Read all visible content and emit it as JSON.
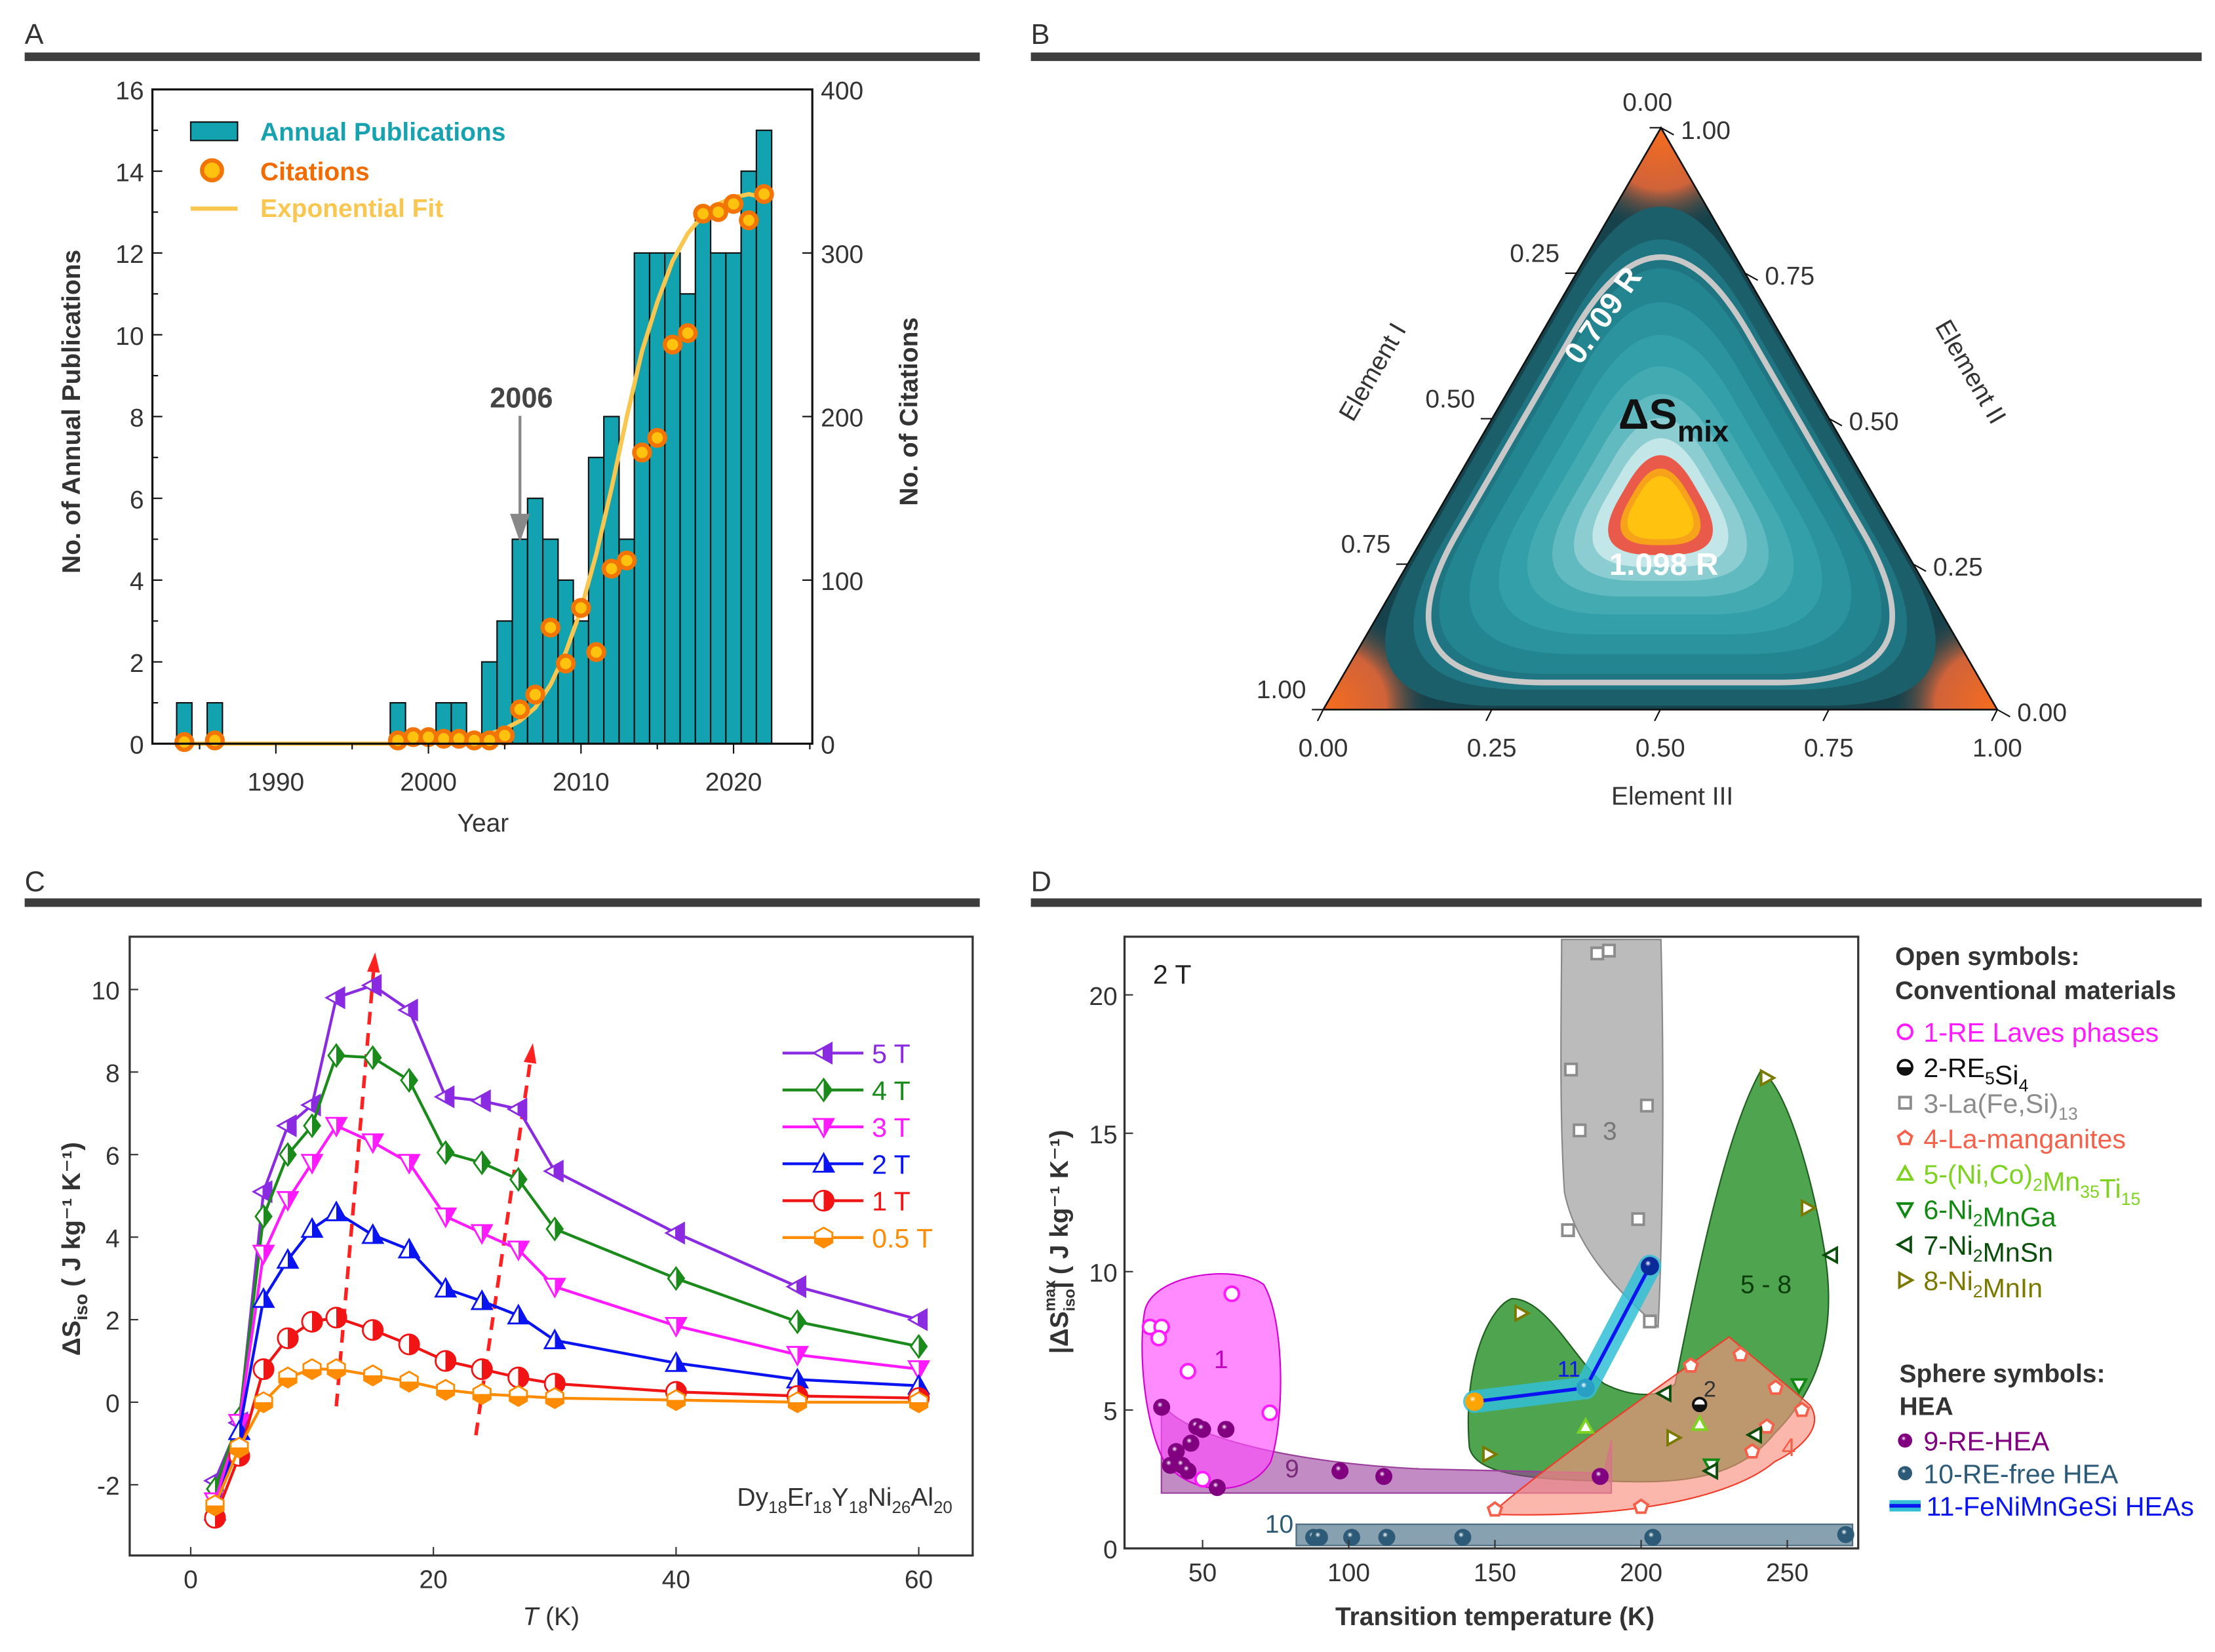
{
  "panels": {
    "a": "A",
    "b": "B",
    "c": "C",
    "d": "D"
  },
  "chart_data": [
    {
      "type": "bar",
      "panel": "A",
      "xlabel": "Year",
      "ylabel": "No. of Annual Publications",
      "y2label": "No. of Citations",
      "ylim": [
        0,
        16
      ],
      "y2lim": [
        0,
        400
      ],
      "yticks": [
        "0",
        "2",
        "4",
        "6",
        "8",
        "10",
        "12",
        "14",
        "16"
      ],
      "y2ticks": [
        "0",
        "100",
        "200",
        "300",
        "400"
      ],
      "xticks": [
        "1990",
        "2000",
        "2010",
        "2020"
      ],
      "annotation": "2006",
      "legend": [
        "Annual Publications",
        "Citations",
        "Exponential Fit"
      ],
      "publications": {
        "years": [
          1984,
          1986,
          1998,
          2001,
          2002,
          2004,
          2005,
          2006,
          2007,
          2008,
          2009,
          2010,
          2011,
          2012,
          2013,
          2014,
          2015,
          2016,
          2017,
          2018,
          2019,
          2020,
          2021,
          2022
        ],
        "values": [
          1,
          1,
          1,
          1,
          1,
          2,
          3,
          5,
          6,
          5,
          4,
          3,
          7,
          8,
          5,
          12,
          12,
          12,
          11,
          13,
          12,
          12,
          14,
          15
        ]
      },
      "citations": {
        "years": [
          1984,
          1986,
          1998,
          1999,
          2000,
          2001,
          2002,
          2003,
          2004,
          2005,
          2006,
          2007,
          2008,
          2009,
          2010,
          2011,
          2012,
          2013,
          2014,
          2015,
          2016,
          2017,
          2018,
          2019,
          2020,
          2021,
          2022
        ],
        "values": [
          1,
          2,
          2,
          4,
          4,
          3,
          3,
          2,
          2,
          5,
          21,
          30,
          71,
          49,
          83,
          56,
          107,
          112,
          178,
          187,
          244,
          251,
          324,
          325,
          330,
          320,
          336
        ]
      },
      "fit": {
        "years": [
          1984,
          1998,
          2000,
          2002,
          2003,
          2004,
          2005,
          2006,
          2007,
          2008,
          2009,
          2010,
          2011,
          2012,
          2013,
          2014,
          2015,
          2016,
          2017,
          2018,
          2019,
          2020,
          2021,
          2022
        ],
        "values": [
          0,
          0,
          1,
          3,
          4,
          6,
          9,
          14,
          22,
          36,
          56,
          82,
          116,
          156,
          200,
          240,
          270,
          295,
          312,
          323,
          330,
          334,
          336,
          334
        ]
      },
      "colors": {
        "bar": "#13a3b0",
        "citation": "#f27405",
        "citation_fill": "#ffc20e",
        "fit": "#f9c74f",
        "arrow": "#888888"
      }
    },
    {
      "type": "ternary",
      "panel": "B",
      "axes": [
        "Element I",
        "Element II",
        "Element III"
      ],
      "left_ticks": [
        "0.00",
        "0.25",
        "0.50",
        "0.75",
        "1.00"
      ],
      "right_ticks": [
        "1.00",
        "0.75",
        "0.50",
        "0.25",
        "0.00"
      ],
      "bottom_ticks": [
        "0.00",
        "0.25",
        "0.50",
        "0.75",
        "1.00"
      ],
      "title": "ΔS",
      "title_sub": "mix",
      "contour_outer": "0.709 R",
      "contour_max": "1.098 R"
    },
    {
      "type": "line",
      "panel": "C",
      "xlabel_italic": "T",
      "xlabel": " (K)",
      "ylabel": "ΔS",
      "ylabel_sub": "iso",
      "ylabel_units": " ( J kg⁻¹ K⁻¹)",
      "xlim": [
        -5,
        64
      ],
      "ylim": [
        -3.4,
        11.2
      ],
      "xticks": [
        0,
        20,
        40,
        60
      ],
      "yticks": [
        -2,
        0,
        2,
        4,
        6,
        8,
        10
      ],
      "formula": [
        [
          "Dy",
          ""
        ],
        [
          "18",
          "sub"
        ],
        [
          "Er",
          ""
        ],
        [
          "18",
          "sub"
        ],
        [
          "Y",
          ""
        ],
        [
          "18",
          "sub"
        ],
        [
          "Ni",
          ""
        ],
        [
          "26",
          "sub"
        ],
        [
          "Al",
          ""
        ],
        [
          "20",
          "sub"
        ]
      ],
      "x": [
        2,
        4,
        6,
        8,
        10,
        12,
        15,
        18,
        21,
        24,
        27,
        30,
        40,
        50,
        60
      ],
      "series": [
        {
          "name": "5 T",
          "color": "#8a2be2",
          "marker": "tri-left",
          "values": [
            -1.9,
            -0.5,
            5.1,
            6.7,
            7.2,
            9.8,
            10.1,
            9.5,
            7.4,
            7.3,
            7.1,
            5.6,
            4.1,
            2.8,
            2.0
          ]
        },
        {
          "name": "4 T",
          "color": "#1a8a1a",
          "marker": "diamond",
          "values": [
            -2.1,
            -0.4,
            4.5,
            6.0,
            6.7,
            8.4,
            8.35,
            7.8,
            6.05,
            5.8,
            5.4,
            4.2,
            3.0,
            1.95,
            1.35
          ]
        },
        {
          "name": "3 T",
          "color": "#ff1aff",
          "marker": "tri-down",
          "values": [
            -2.4,
            -0.5,
            3.6,
            4.9,
            5.8,
            6.7,
            6.3,
            5.8,
            4.5,
            4.1,
            3.7,
            2.8,
            1.85,
            1.15,
            0.8
          ]
        },
        {
          "name": "2 T",
          "color": "#0a14f0",
          "marker": "tri-up",
          "values": [
            -2.65,
            -0.7,
            2.5,
            3.45,
            4.2,
            4.6,
            4.05,
            3.7,
            2.75,
            2.45,
            2.1,
            1.5,
            0.95,
            0.55,
            0.4
          ]
        },
        {
          "name": "1 T",
          "color": "#f01414",
          "marker": "circle",
          "values": [
            -2.8,
            -1.3,
            0.8,
            1.55,
            1.95,
            2.05,
            1.75,
            1.4,
            1.0,
            0.8,
            0.6,
            0.45,
            0.25,
            0.15,
            0.1
          ]
        },
        {
          "name": "0.5 T",
          "color": "#ff8c00",
          "marker": "hexagon",
          "values": [
            -2.5,
            -1.1,
            0.0,
            0.6,
            0.8,
            0.8,
            0.65,
            0.5,
            0.3,
            0.2,
            0.15,
            0.1,
            0.05,
            0.0,
            0.0
          ]
        }
      ],
      "trend_arrows": [
        {
          "from": [
            12,
            -0.1
          ],
          "to": [
            15.2,
            10.9
          ]
        },
        {
          "from": [
            23.5,
            -0.8
          ],
          "to": [
            28.2,
            8.7
          ]
        }
      ],
      "arrow_color": "#ff2020"
    },
    {
      "type": "scatter",
      "panel": "D",
      "xlabel": "Transition temperature (K)",
      "ylabel": "|ΔS",
      "ylabel_sup": "max",
      "ylabel_sub": "iso",
      "ylabel_units": "| ( J kg⁻¹ K⁻¹)",
      "xlim": [
        23,
        274
      ],
      "ylim": [
        0,
        22
      ],
      "xticks": [
        50,
        100,
        150,
        200,
        250
      ],
      "yticks": [
        0,
        5,
        10,
        15,
        20
      ],
      "field_label": "2 T",
      "region_labels": {
        "r1": "1",
        "r2": "2",
        "r3": "3",
        "r4": "4",
        "r58": "5 - 8",
        "r9": "9",
        "r10": "10",
        "r11": "11"
      },
      "legend_heading_open": [
        "Open symbols:",
        "Conventional materials"
      ],
      "legend_heading_sphere": [
        "Sphere symbols:",
        "HEA"
      ],
      "series": [
        {
          "id": "1",
          "color": "#ff1aff",
          "marker": "circle",
          "label": [
            [
              "1-RE Laves phases",
              ""
            ]
          ],
          "points": [
            [
              32,
              8.0
            ],
            [
              36,
              8.0
            ],
            [
              35,
              7.6
            ],
            [
              45,
              6.4
            ],
            [
              60,
              9.2
            ],
            [
              73,
              4.9
            ],
            [
              50,
              2.5
            ]
          ]
        },
        {
          "id": "2",
          "color": "#111111",
          "marker": "half-circle",
          "label": [
            [
              "2-RE",
              ""
            ],
            [
              "5",
              "sub"
            ],
            [
              "Si",
              ""
            ],
            [
              "4",
              "sub"
            ]
          ],
          "points": [
            [
              220,
              5.2
            ]
          ]
        },
        {
          "id": "3",
          "color": "#8c8c8c",
          "marker": "square",
          "label": [
            [
              "3-La(Fe,Si)",
              ""
            ],
            [
              "13",
              "sub"
            ]
          ],
          "points": [
            [
              185,
              21.5
            ],
            [
              189,
              21.6
            ],
            [
              176,
              17.3
            ],
            [
              202,
              16.0
            ],
            [
              179,
              15.1
            ],
            [
              175,
              11.5
            ],
            [
              199,
              11.9
            ],
            [
              203,
              8.2
            ]
          ]
        },
        {
          "id": "4",
          "color": "#f5604a",
          "marker": "pentagon",
          "label": [
            [
              "4-La-manganites",
              ""
            ]
          ],
          "points": [
            [
              150,
              1.4
            ],
            [
              200,
              1.5
            ],
            [
              217,
              6.6
            ],
            [
              234,
              7.0
            ],
            [
              246,
              5.8
            ],
            [
              255,
              5.0
            ],
            [
              243,
              4.4
            ],
            [
              238,
              3.5
            ]
          ]
        },
        {
          "id": "5",
          "color": "#7ed321",
          "marker": "tri-up",
          "label": [
            [
              "5-(Ni,Co)",
              ""
            ],
            [
              "2",
              "sub"
            ],
            [
              "Mn",
              ""
            ],
            [
              "35",
              "sub"
            ],
            [
              "Ti",
              ""
            ],
            [
              "15",
              "sub"
            ]
          ],
          "points": [
            [
              181,
              4.4
            ],
            [
              220,
              4.5
            ]
          ]
        },
        {
          "id": "6",
          "color": "#118811",
          "marker": "tri-down",
          "label": [
            [
              "6-Ni",
              ""
            ],
            [
              "2",
              "sub"
            ],
            [
              "MnGa",
              ""
            ]
          ],
          "points": [
            [
              254,
              5.9
            ],
            [
              224,
              3.0
            ]
          ]
        },
        {
          "id": "7",
          "color": "#0b4d0b",
          "marker": "tri-left",
          "label": [
            [
              "7-Ni",
              ""
            ],
            [
              "2",
              "sub"
            ],
            [
              "MnSn",
              ""
            ]
          ],
          "points": [
            [
              208,
              5.6
            ],
            [
              239,
              4.1
            ],
            [
              224,
              2.8
            ],
            [
              265,
              10.6
            ]
          ]
        },
        {
          "id": "8",
          "color": "#7a7a00",
          "marker": "tri-right",
          "label": [
            [
              "8-Ni",
              ""
            ],
            [
              "2",
              "sub"
            ],
            [
              "MnIn",
              ""
            ]
          ],
          "points": [
            [
              159,
              8.5
            ],
            [
              148,
              3.4
            ],
            [
              211,
              4.0
            ],
            [
              243,
              17.0
            ],
            [
              257,
              12.3
            ]
          ]
        },
        {
          "id": "9",
          "color": "#800080",
          "marker": "sphere",
          "label": [
            [
              "9-RE-HEA",
              ""
            ]
          ],
          "points": [
            [
              36,
              5.1
            ],
            [
              48,
              4.4
            ],
            [
              50,
              4.3
            ],
            [
              58,
              4.3
            ],
            [
              46,
              3.8
            ],
            [
              41,
              3.5
            ],
            [
              39,
              3.0
            ],
            [
              43,
              3.0
            ],
            [
              45,
              2.8
            ],
            [
              55,
              2.2
            ],
            [
              97,
              2.8
            ],
            [
              112,
              2.6
            ],
            [
              186,
              2.6
            ]
          ]
        },
        {
          "id": "10",
          "color": "#2d5b77",
          "marker": "sphere",
          "label": [
            [
              "10-RE-free HEA",
              ""
            ]
          ],
          "points": [
            [
              88,
              0.4
            ],
            [
              90,
              0.4
            ],
            [
              101,
              0.4
            ],
            [
              113,
              0.4
            ],
            [
              139,
              0.4
            ],
            [
              204,
              0.4
            ],
            [
              270,
              0.5
            ]
          ]
        },
        {
          "id": "11",
          "color": "#0a14f0",
          "marker": "band",
          "label": [
            [
              "11-FeNiMnGeSi HEAs",
              ""
            ]
          ],
          "points": [
            [
              143,
              5.3
            ],
            [
              181,
              5.8
            ],
            [
              203,
              10.2
            ]
          ],
          "point_colors": [
            "#ffa500",
            "#2a9fc4",
            "#0a2a9a"
          ],
          "band_color": "#33bfd6"
        }
      ]
    }
  ]
}
